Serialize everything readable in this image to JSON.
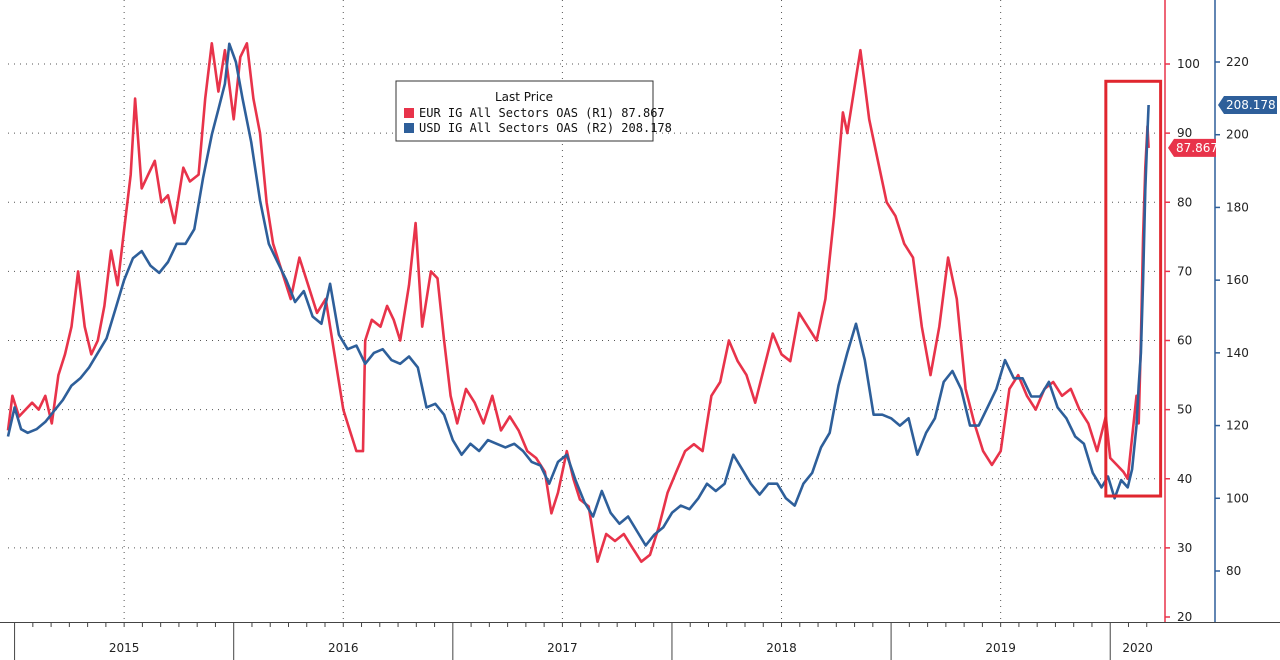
{
  "chart_data": {
    "type": "line",
    "title": "",
    "xlabel": "",
    "x_range": [
      2014.97,
      2020.25
    ],
    "year_labels": [
      "2015",
      "2016",
      "2017",
      "2018",
      "2019",
      "2020"
    ],
    "legend": {
      "title": "Last Price",
      "entries": [
        "EUR IG All Sectors OAS  (R1) 87.867",
        "USD IG All Sectors OAS  (R2) 208.178"
      ]
    },
    "axes": {
      "r1": {
        "range": [
          20,
          105
        ],
        "ticks": [
          20,
          30,
          40,
          50,
          60,
          70,
          80,
          90,
          100
        ]
      },
      "r2": {
        "range": [
          70,
          230
        ],
        "ticks": [
          80,
          100,
          120,
          140,
          160,
          180,
          200,
          220
        ]
      }
    },
    "highlight": {
      "x_range": [
        2019.98,
        2020.23
      ],
      "r1_range": [
        37.5,
        97.5
      ]
    },
    "series": [
      {
        "name": "EUR IG All Sectors OAS",
        "axis": "r1",
        "color": "#e8334a",
        "last_value": "87.867",
        "points": [
          [
            2014.97,
            47
          ],
          [
            2014.99,
            52
          ],
          [
            2015.02,
            49
          ],
          [
            2015.05,
            50
          ],
          [
            2015.08,
            51
          ],
          [
            2015.11,
            50
          ],
          [
            2015.14,
            52
          ],
          [
            2015.17,
            48
          ],
          [
            2015.2,
            55
          ],
          [
            2015.23,
            58
          ],
          [
            2015.26,
            62
          ],
          [
            2015.29,
            70
          ],
          [
            2015.32,
            62
          ],
          [
            2015.35,
            58
          ],
          [
            2015.38,
            60
          ],
          [
            2015.41,
            65
          ],
          [
            2015.44,
            73
          ],
          [
            2015.47,
            68
          ],
          [
            2015.5,
            76
          ],
          [
            2015.53,
            84
          ],
          [
            2015.55,
            95
          ],
          [
            2015.58,
            82
          ],
          [
            2015.61,
            84
          ],
          [
            2015.64,
            86
          ],
          [
            2015.67,
            80
          ],
          [
            2015.7,
            81
          ],
          [
            2015.73,
            77
          ],
          [
            2015.77,
            85
          ],
          [
            2015.8,
            83
          ],
          [
            2015.84,
            84
          ],
          [
            2015.87,
            95
          ],
          [
            2015.9,
            103
          ],
          [
            2015.93,
            96
          ],
          [
            2015.96,
            102
          ],
          [
            2016.0,
            92
          ],
          [
            2016.03,
            101
          ],
          [
            2016.06,
            103
          ],
          [
            2016.09,
            95
          ],
          [
            2016.12,
            90
          ],
          [
            2016.15,
            80
          ],
          [
            2016.18,
            74
          ],
          [
            2016.22,
            70
          ],
          [
            2016.26,
            66
          ],
          [
            2016.3,
            72
          ],
          [
            2016.34,
            68
          ],
          [
            2016.38,
            64
          ],
          [
            2016.42,
            66
          ],
          [
            2016.46,
            58
          ],
          [
            2016.5,
            50
          ],
          [
            2016.53,
            47
          ],
          [
            2016.56,
            44
          ],
          [
            2016.59,
            44
          ],
          [
            2016.6,
            60
          ],
          [
            2016.63,
            63
          ],
          [
            2016.67,
            62
          ],
          [
            2016.7,
            65
          ],
          [
            2016.73,
            63
          ],
          [
            2016.76,
            60
          ],
          [
            2016.8,
            68
          ],
          [
            2016.83,
            77
          ],
          [
            2016.86,
            62
          ],
          [
            2016.9,
            70
          ],
          [
            2016.93,
            69
          ],
          [
            2016.96,
            60
          ],
          [
            2016.99,
            52
          ],
          [
            2017.02,
            48
          ],
          [
            2017.06,
            53
          ],
          [
            2017.1,
            51
          ],
          [
            2017.14,
            48
          ],
          [
            2017.18,
            52
          ],
          [
            2017.22,
            47
          ],
          [
            2017.26,
            49
          ],
          [
            2017.3,
            47
          ],
          [
            2017.34,
            44
          ],
          [
            2017.38,
            43
          ],
          [
            2017.42,
            41
          ],
          [
            2017.45,
            35
          ],
          [
            2017.48,
            38
          ],
          [
            2017.52,
            44
          ],
          [
            2017.55,
            40
          ],
          [
            2017.58,
            37
          ],
          [
            2017.62,
            36
          ],
          [
            2017.66,
            28
          ],
          [
            2017.7,
            32
          ],
          [
            2017.74,
            31
          ],
          [
            2017.78,
            32
          ],
          [
            2017.82,
            30
          ],
          [
            2017.86,
            28
          ],
          [
            2017.9,
            29
          ],
          [
            2017.94,
            33
          ],
          [
            2017.98,
            38
          ],
          [
            2018.02,
            41
          ],
          [
            2018.06,
            44
          ],
          [
            2018.1,
            45
          ],
          [
            2018.14,
            44
          ],
          [
            2018.18,
            52
          ],
          [
            2018.22,
            54
          ],
          [
            2018.26,
            60
          ],
          [
            2018.3,
            57
          ],
          [
            2018.34,
            55
          ],
          [
            2018.38,
            51
          ],
          [
            2018.42,
            56
          ],
          [
            2018.46,
            61
          ],
          [
            2018.5,
            58
          ],
          [
            2018.54,
            57
          ],
          [
            2018.58,
            64
          ],
          [
            2018.62,
            62
          ],
          [
            2018.66,
            60
          ],
          [
            2018.7,
            66
          ],
          [
            2018.74,
            78
          ],
          [
            2018.78,
            93
          ],
          [
            2018.8,
            90
          ],
          [
            2018.84,
            98
          ],
          [
            2018.86,
            102
          ],
          [
            2018.88,
            97
          ],
          [
            2018.9,
            92
          ],
          [
            2018.94,
            86
          ],
          [
            2018.98,
            80
          ],
          [
            2019.02,
            78
          ],
          [
            2019.06,
            74
          ],
          [
            2019.1,
            72
          ],
          [
            2019.14,
            62
          ],
          [
            2019.18,
            55
          ],
          [
            2019.22,
            62
          ],
          [
            2019.26,
            72
          ],
          [
            2019.3,
            66
          ],
          [
            2019.34,
            53
          ],
          [
            2019.38,
            48
          ],
          [
            2019.42,
            44
          ],
          [
            2019.46,
            42
          ],
          [
            2019.5,
            44
          ],
          [
            2019.54,
            53
          ],
          [
            2019.58,
            55
          ],
          [
            2019.62,
            52
          ],
          [
            2019.66,
            50
          ],
          [
            2019.7,
            53
          ],
          [
            2019.74,
            54
          ],
          [
            2019.78,
            52
          ],
          [
            2019.82,
            53
          ],
          [
            2019.86,
            50
          ],
          [
            2019.9,
            48
          ],
          [
            2019.94,
            44
          ],
          [
            2019.98,
            49
          ],
          [
            2020.0,
            43
          ],
          [
            2020.03,
            42
          ],
          [
            2020.06,
            41
          ],
          [
            2020.08,
            40
          ],
          [
            2020.1,
            46
          ],
          [
            2020.12,
            52
          ],
          [
            2020.13,
            48
          ],
          [
            2020.14,
            60
          ],
          [
            2020.15,
            75
          ],
          [
            2020.16,
            85
          ],
          [
            2020.17,
            91
          ],
          [
            2020.175,
            87.867
          ]
        ]
      },
      {
        "name": "USD IG All Sectors OAS",
        "axis": "r2",
        "color": "#2e5f9a",
        "last_value": "208.178",
        "points": [
          [
            2014.97,
            117
          ],
          [
            2015.0,
            125
          ],
          [
            2015.03,
            119
          ],
          [
            2015.06,
            118
          ],
          [
            2015.1,
            119
          ],
          [
            2015.14,
            121
          ],
          [
            2015.18,
            124
          ],
          [
            2015.22,
            127
          ],
          [
            2015.26,
            131
          ],
          [
            2015.3,
            133
          ],
          [
            2015.34,
            136
          ],
          [
            2015.38,
            140
          ],
          [
            2015.42,
            144
          ],
          [
            2015.46,
            152
          ],
          [
            2015.5,
            160
          ],
          [
            2015.54,
            166
          ],
          [
            2015.58,
            168
          ],
          [
            2015.62,
            164
          ],
          [
            2015.66,
            162
          ],
          [
            2015.7,
            165
          ],
          [
            2015.74,
            170
          ],
          [
            2015.78,
            170
          ],
          [
            2015.82,
            174
          ],
          [
            2015.86,
            188
          ],
          [
            2015.9,
            200
          ],
          [
            2015.93,
            207
          ],
          [
            2015.96,
            214
          ],
          [
            2015.98,
            225
          ],
          [
            2016.01,
            220
          ],
          [
            2016.04,
            210
          ],
          [
            2016.08,
            198
          ],
          [
            2016.12,
            182
          ],
          [
            2016.16,
            170
          ],
          [
            2016.2,
            165
          ],
          [
            2016.24,
            160
          ],
          [
            2016.28,
            154
          ],
          [
            2016.32,
            157
          ],
          [
            2016.36,
            150
          ],
          [
            2016.4,
            148
          ],
          [
            2016.44,
            159
          ],
          [
            2016.48,
            145
          ],
          [
            2016.52,
            141
          ],
          [
            2016.56,
            142
          ],
          [
            2016.6,
            137
          ],
          [
            2016.64,
            140
          ],
          [
            2016.68,
            141
          ],
          [
            2016.72,
            138
          ],
          [
            2016.76,
            137
          ],
          [
            2016.8,
            139
          ],
          [
            2016.84,
            136
          ],
          [
            2016.88,
            125
          ],
          [
            2016.92,
            126
          ],
          [
            2016.96,
            123
          ],
          [
            2017.0,
            116
          ],
          [
            2017.04,
            112
          ],
          [
            2017.08,
            115
          ],
          [
            2017.12,
            113
          ],
          [
            2017.16,
            116
          ],
          [
            2017.2,
            115
          ],
          [
            2017.24,
            114
          ],
          [
            2017.28,
            115
          ],
          [
            2017.32,
            113
          ],
          [
            2017.36,
            110
          ],
          [
            2017.4,
            109
          ],
          [
            2017.44,
            104
          ],
          [
            2017.48,
            110
          ],
          [
            2017.52,
            112
          ],
          [
            2017.56,
            105
          ],
          [
            2017.6,
            99
          ],
          [
            2017.64,
            95
          ],
          [
            2017.68,
            102
          ],
          [
            2017.72,
            96
          ],
          [
            2017.76,
            93
          ],
          [
            2017.8,
            95
          ],
          [
            2017.84,
            91
          ],
          [
            2017.88,
            87
          ],
          [
            2017.92,
            90
          ],
          [
            2017.96,
            92
          ],
          [
            2018.0,
            96
          ],
          [
            2018.04,
            98
          ],
          [
            2018.08,
            97
          ],
          [
            2018.12,
            100
          ],
          [
            2018.16,
            104
          ],
          [
            2018.2,
            102
          ],
          [
            2018.24,
            104
          ],
          [
            2018.28,
            112
          ],
          [
            2018.32,
            108
          ],
          [
            2018.36,
            104
          ],
          [
            2018.4,
            101
          ],
          [
            2018.44,
            104
          ],
          [
            2018.48,
            104
          ],
          [
            2018.52,
            100
          ],
          [
            2018.56,
            98
          ],
          [
            2018.6,
            104
          ],
          [
            2018.64,
            107
          ],
          [
            2018.68,
            114
          ],
          [
            2018.72,
            118
          ],
          [
            2018.76,
            131
          ],
          [
            2018.8,
            140
          ],
          [
            2018.84,
            148
          ],
          [
            2018.88,
            138
          ],
          [
            2018.92,
            123
          ],
          [
            2018.96,
            123
          ],
          [
            2019.0,
            122
          ],
          [
            2019.04,
            120
          ],
          [
            2019.08,
            122
          ],
          [
            2019.12,
            112
          ],
          [
            2019.16,
            118
          ],
          [
            2019.2,
            122
          ],
          [
            2019.24,
            132
          ],
          [
            2019.28,
            135
          ],
          [
            2019.32,
            130
          ],
          [
            2019.36,
            120
          ],
          [
            2019.4,
            120
          ],
          [
            2019.44,
            125
          ],
          [
            2019.48,
            130
          ],
          [
            2019.52,
            138
          ],
          [
            2019.56,
            133
          ],
          [
            2019.6,
            133
          ],
          [
            2019.64,
            128
          ],
          [
            2019.68,
            128
          ],
          [
            2019.72,
            132
          ],
          [
            2019.76,
            125
          ],
          [
            2019.8,
            122
          ],
          [
            2019.84,
            117
          ],
          [
            2019.88,
            115
          ],
          [
            2019.92,
            107
          ],
          [
            2019.96,
            103
          ],
          [
            2019.99,
            106
          ],
          [
            2020.02,
            100
          ],
          [
            2020.05,
            105
          ],
          [
            2020.08,
            103
          ],
          [
            2020.1,
            108
          ],
          [
            2020.12,
            120
          ],
          [
            2020.13,
            131
          ],
          [
            2020.14,
            140
          ],
          [
            2020.15,
            160
          ],
          [
            2020.16,
            185
          ],
          [
            2020.17,
            201
          ],
          [
            2020.175,
            208.178
          ]
        ]
      }
    ]
  }
}
